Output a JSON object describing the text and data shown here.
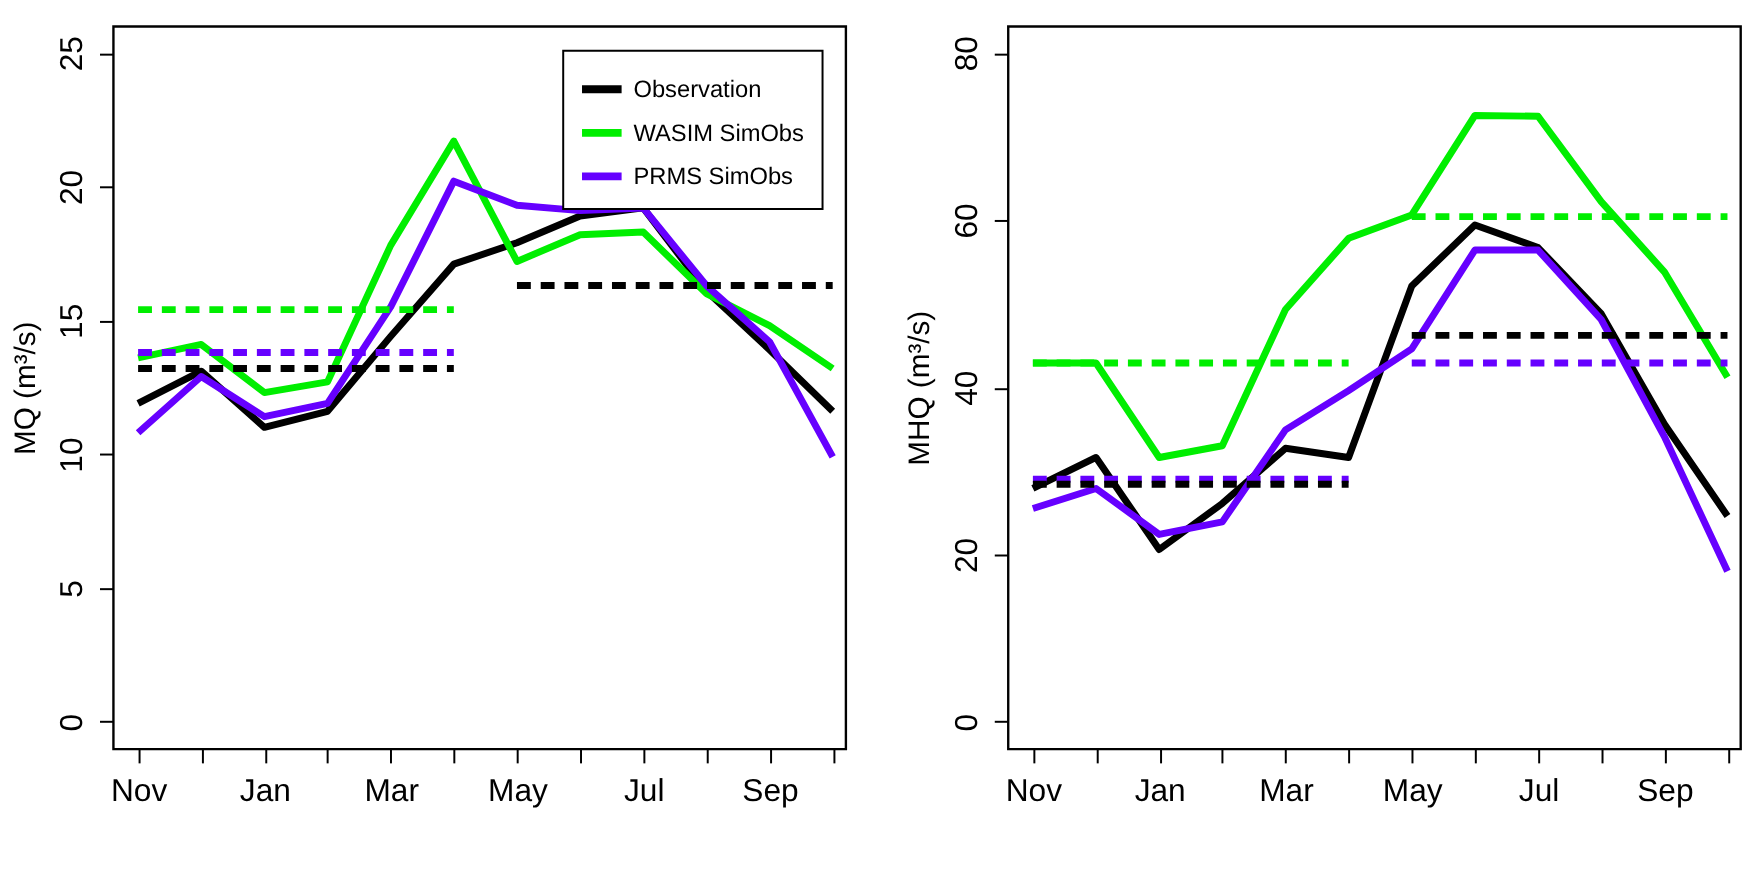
{
  "chart_data": [
    {
      "type": "line",
      "ylabel": "MQ (m³/s)",
      "categories": [
        "Nov",
        null,
        "Jan",
        null,
        "Mar",
        null,
        "May",
        null,
        "Jul",
        null,
        "Sep",
        null
      ],
      "ylim": [
        -1,
        26
      ],
      "yticks": [
        0,
        5,
        10,
        15,
        20,
        25
      ],
      "grid": false,
      "legend": "top right",
      "line_style": "solid",
      "marker": "none",
      "series": [
        {
          "name": "Observation",
          "color": "#000000",
          "values": [
            11.9,
            13.1,
            11.0,
            11.6,
            14.4,
            17.1,
            17.9,
            18.9,
            19.2,
            16.1,
            13.9,
            11.6
          ]
        },
        {
          "name": "WASIM SimObs",
          "color": "#00ee00",
          "values": [
            13.6,
            14.1,
            12.3,
            12.7,
            17.8,
            21.7,
            17.2,
            18.2,
            18.3,
            16.0,
            14.8,
            13.2
          ]
        },
        {
          "name": "PRMS SimObs",
          "color": "#6600ff",
          "values": [
            10.8,
            12.9,
            11.4,
            11.9,
            15.5,
            20.2,
            19.3,
            19.1,
            19.2,
            16.3,
            14.2,
            9.9
          ]
        },
        {
          "color": "#00ee00",
          "line_style": "dashed",
          "values": [
            15.4,
            15.4,
            15.4,
            15.4,
            15.4,
            15.4,
            null,
            null,
            null,
            null,
            null,
            null
          ]
        },
        {
          "color": "#6600ff",
          "line_style": "dashed",
          "values": [
            13.8,
            13.8,
            13.8,
            13.8,
            13.8,
            13.8,
            null,
            null,
            null,
            null,
            null,
            null
          ]
        },
        {
          "color": "#000000",
          "line_style": "dashed",
          "values": [
            13.2,
            13.2,
            13.2,
            13.2,
            13.2,
            13.2,
            null,
            null,
            null,
            null,
            null,
            null
          ]
        },
        {
          "color": "#000000",
          "line_style": "dashed",
          "values": [
            null,
            null,
            null,
            null,
            null,
            null,
            16.3,
            16.3,
            16.3,
            16.3,
            16.3,
            16.3
          ]
        }
      ]
    },
    {
      "type": "line",
      "ylabel": "MHQ (m³/s)",
      "categories": [
        "Nov",
        null,
        "Jan",
        null,
        "Mar",
        null,
        "May",
        null,
        "Jul",
        null,
        "Sep",
        null
      ],
      "ylim": [
        -3.2,
        83.2
      ],
      "yticks": [
        0,
        20,
        40,
        60,
        80
      ],
      "grid": false,
      "legend": false,
      "line_style": "solid",
      "marker": "none",
      "series": [
        {
          "color": "#000000",
          "values": [
            27.9,
            31.6,
            20.6,
            26.1,
            32.7,
            31.6,
            52.1,
            59.4,
            56.7,
            48.8,
            35.6,
            24.6
          ]
        },
        {
          "color": "#00ee00",
          "values": [
            42.9,
            42.9,
            31.6,
            33.0,
            49.3,
            57.8,
            60.6,
            72.5,
            72.4,
            62.2,
            53.8,
            41.2
          ]
        },
        {
          "color": "#6600ff",
          "values": [
            25.5,
            27.9,
            22.4,
            23.9,
            34.9,
            39.6,
            44.6,
            56.4,
            56.4,
            48.1,
            34.1,
            18.0
          ]
        },
        {
          "color": "#00ee00",
          "line_style": "dashed",
          "values": [
            42.9,
            42.9,
            42.9,
            42.9,
            42.9,
            42.9,
            null,
            null,
            null,
            null,
            null,
            null
          ]
        },
        {
          "color": "#6600ff",
          "line_style": "dashed",
          "values": [
            29.0,
            29.0,
            29.0,
            29.0,
            29.0,
            29.0,
            null,
            null,
            null,
            null,
            null,
            null
          ]
        },
        {
          "color": "#000000",
          "line_style": "dashed",
          "values": [
            28.4,
            28.4,
            28.4,
            28.4,
            28.4,
            28.4,
            null,
            null,
            null,
            null,
            null,
            null
          ]
        },
        {
          "color": "#00ee00",
          "line_style": "dashed",
          "values": [
            null,
            null,
            null,
            null,
            null,
            null,
            60.4,
            60.4,
            60.4,
            60.4,
            60.4,
            60.4
          ]
        },
        {
          "color": "#6600ff",
          "line_style": "dashed",
          "values": [
            null,
            null,
            null,
            null,
            null,
            null,
            42.9,
            42.9,
            42.9,
            42.9,
            42.9,
            42.9
          ]
        },
        {
          "color": "#000000",
          "line_style": "dashed",
          "values": [
            null,
            null,
            null,
            null,
            null,
            null,
            46.2,
            46.2,
            46.2,
            46.2,
            46.2,
            46.2
          ]
        }
      ]
    }
  ]
}
